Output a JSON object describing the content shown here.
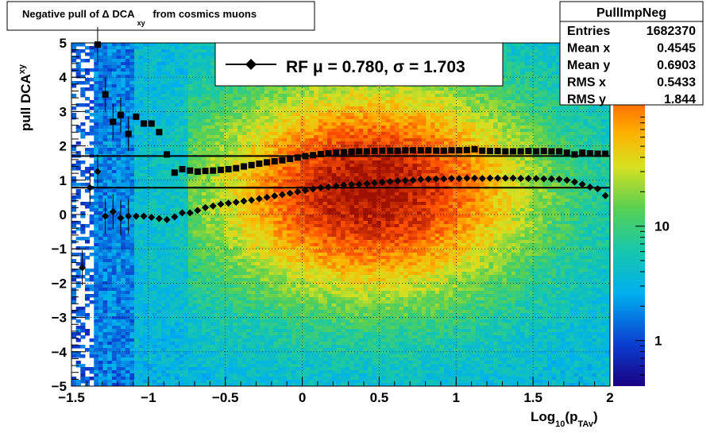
{
  "chart_data": {
    "type": "heatmap",
    "title": "Negative pull of Δ DCA",
    "title_subscript": "xy",
    "title_suffix": "from cosmics muons",
    "xlabel": "Log",
    "xlabel_sub1": "10",
    "xlabel_mid": "(p",
    "xlabel_sub2": "TAv",
    "xlabel_end": ")",
    "ylabel": "pull DCA",
    "ylabel_sub": "xy",
    "xlim": [
      -1.5,
      2
    ],
    "ylim": [
      -5,
      5
    ],
    "x_ticks": [
      -1.5,
      -1,
      -0.5,
      0,
      0.5,
      1,
      1.5,
      2
    ],
    "x_tick_labels": [
      "−1.5",
      "−1",
      "−0.5",
      "0",
      "0.5",
      "1",
      "1.5",
      "2"
    ],
    "y_ticks": [
      -5,
      -4,
      -3,
      -2,
      -1,
      0,
      1,
      2,
      3,
      4,
      5
    ],
    "y_tick_labels": [
      "−5",
      "−4",
      "−3",
      "−2",
      "−1",
      "0",
      "1",
      "2",
      "3",
      "4",
      "5"
    ],
    "grid": true,
    "colorbar": {
      "scale": "log",
      "tick_values": [
        1,
        10
      ],
      "tick_labels": [
        "1",
        "10"
      ]
    },
    "stats": {
      "title": "PullImpNeg",
      "rows": [
        {
          "label": "Entries",
          "value": "1682370"
        },
        {
          "label": "Mean x",
          "value": "0.4545"
        },
        {
          "label": "Mean y",
          "value": "0.6903"
        },
        {
          "label": "RMS x",
          "value": "0.5433"
        },
        {
          "label": "RMS y",
          "value": "1.844"
        }
      ]
    },
    "legend": {
      "placement": "top-center",
      "text": "RF μ =  0.780, σ =   1.703"
    },
    "lines": {
      "mean": 0.78,
      "sigma": 1.703
    },
    "series": [
      {
        "marker": "diamond",
        "points": [
          [
            -1.43,
            -1.55
          ],
          [
            -1.38,
            0.78
          ],
          [
            -1.33,
            1.25
          ],
          [
            -1.28,
            -0.05
          ],
          [
            -1.23,
            0.08
          ],
          [
            -1.18,
            -0.1
          ],
          [
            -1.13,
            -0.05
          ],
          [
            -1.08,
            -0.05
          ],
          [
            -1.03,
            -0.05
          ],
          [
            -0.98,
            -0.08
          ],
          [
            -0.93,
            -0.12
          ],
          [
            -0.88,
            -0.15
          ],
          [
            -0.83,
            -0.07
          ],
          [
            -0.78,
            0.05
          ],
          [
            -0.73,
            0.05
          ],
          [
            -0.68,
            0.12
          ],
          [
            -0.63,
            0.2
          ],
          [
            -0.58,
            0.25
          ],
          [
            -0.53,
            0.3
          ],
          [
            -0.48,
            0.33
          ],
          [
            -0.43,
            0.36
          ],
          [
            -0.38,
            0.39
          ],
          [
            -0.33,
            0.42
          ],
          [
            -0.28,
            0.46
          ],
          [
            -0.23,
            0.5
          ],
          [
            -0.18,
            0.54
          ],
          [
            -0.13,
            0.58
          ],
          [
            -0.08,
            0.62
          ],
          [
            -0.03,
            0.66
          ],
          [
            0.02,
            0.7
          ],
          [
            0.07,
            0.74
          ],
          [
            0.12,
            0.78
          ],
          [
            0.17,
            0.8
          ],
          [
            0.22,
            0.83
          ],
          [
            0.27,
            0.86
          ],
          [
            0.32,
            0.88
          ],
          [
            0.37,
            0.88
          ],
          [
            0.42,
            0.9
          ],
          [
            0.47,
            0.92
          ],
          [
            0.52,
            0.94
          ],
          [
            0.57,
            0.96
          ],
          [
            0.62,
            0.98
          ],
          [
            0.67,
            0.99
          ],
          [
            0.72,
            1.0
          ],
          [
            0.77,
            1.02
          ],
          [
            0.82,
            1.03
          ],
          [
            0.87,
            1.04
          ],
          [
            0.92,
            1.04
          ],
          [
            0.97,
            1.05
          ],
          [
            1.02,
            1.05
          ],
          [
            1.07,
            1.06
          ],
          [
            1.12,
            1.06
          ],
          [
            1.17,
            1.05
          ],
          [
            1.22,
            1.06
          ],
          [
            1.27,
            1.06
          ],
          [
            1.32,
            1.06
          ],
          [
            1.37,
            1.06
          ],
          [
            1.42,
            1.05
          ],
          [
            1.47,
            1.05
          ],
          [
            1.52,
            1.05
          ],
          [
            1.57,
            1.04
          ],
          [
            1.62,
            1.04
          ],
          [
            1.67,
            1.03
          ],
          [
            1.72,
            1.0
          ],
          [
            1.77,
            0.95
          ],
          [
            1.82,
            0.88
          ],
          [
            1.87,
            0.8
          ],
          [
            1.92,
            0.75
          ],
          [
            1.97,
            0.55
          ]
        ]
      },
      {
        "marker": "square",
        "points": [
          [
            -1.33,
            4.95
          ],
          [
            -1.28,
            3.5
          ],
          [
            -1.23,
            2.7
          ],
          [
            -1.18,
            2.9
          ],
          [
            -1.13,
            2.35
          ],
          [
            -1.08,
            2.85
          ],
          [
            -1.03,
            2.65
          ],
          [
            -0.98,
            2.65
          ],
          [
            -0.93,
            2.4
          ],
          [
            -0.88,
            1.75
          ],
          [
            -0.83,
            1.22
          ],
          [
            -0.78,
            1.32
          ],
          [
            -0.73,
            1.28
          ],
          [
            -0.68,
            1.25
          ],
          [
            -0.63,
            1.27
          ],
          [
            -0.58,
            1.28
          ],
          [
            -0.53,
            1.3
          ],
          [
            -0.48,
            1.32
          ],
          [
            -0.43,
            1.35
          ],
          [
            -0.38,
            1.4
          ],
          [
            -0.33,
            1.44
          ],
          [
            -0.28,
            1.48
          ],
          [
            -0.23,
            1.52
          ],
          [
            -0.18,
            1.55
          ],
          [
            -0.13,
            1.58
          ],
          [
            -0.08,
            1.62
          ],
          [
            -0.03,
            1.66
          ],
          [
            0.02,
            1.7
          ],
          [
            0.07,
            1.73
          ],
          [
            0.12,
            1.76
          ],
          [
            0.17,
            1.78
          ],
          [
            0.22,
            1.8
          ],
          [
            0.27,
            1.82
          ],
          [
            0.32,
            1.83
          ],
          [
            0.37,
            1.84
          ],
          [
            0.42,
            1.84
          ],
          [
            0.47,
            1.85
          ],
          [
            0.52,
            1.86
          ],
          [
            0.57,
            1.86
          ],
          [
            0.62,
            1.86
          ],
          [
            0.67,
            1.87
          ],
          [
            0.72,
            1.87
          ],
          [
            0.77,
            1.87
          ],
          [
            0.82,
            1.87
          ],
          [
            0.87,
            1.86
          ],
          [
            0.92,
            1.86
          ],
          [
            0.97,
            1.87
          ],
          [
            1.02,
            1.87
          ],
          [
            1.07,
            1.88
          ],
          [
            1.12,
            1.9
          ],
          [
            1.17,
            1.86
          ],
          [
            1.22,
            1.85
          ],
          [
            1.27,
            1.85
          ],
          [
            1.32,
            1.84
          ],
          [
            1.37,
            1.84
          ],
          [
            1.42,
            1.84
          ],
          [
            1.47,
            1.85
          ],
          [
            1.52,
            1.84
          ],
          [
            1.57,
            1.85
          ],
          [
            1.62,
            1.84
          ],
          [
            1.67,
            1.84
          ],
          [
            1.72,
            1.8
          ],
          [
            1.77,
            1.75
          ],
          [
            1.82,
            1.8
          ],
          [
            1.87,
            1.78
          ],
          [
            1.92,
            1.77
          ],
          [
            1.97,
            1.77
          ]
        ]
      }
    ]
  }
}
